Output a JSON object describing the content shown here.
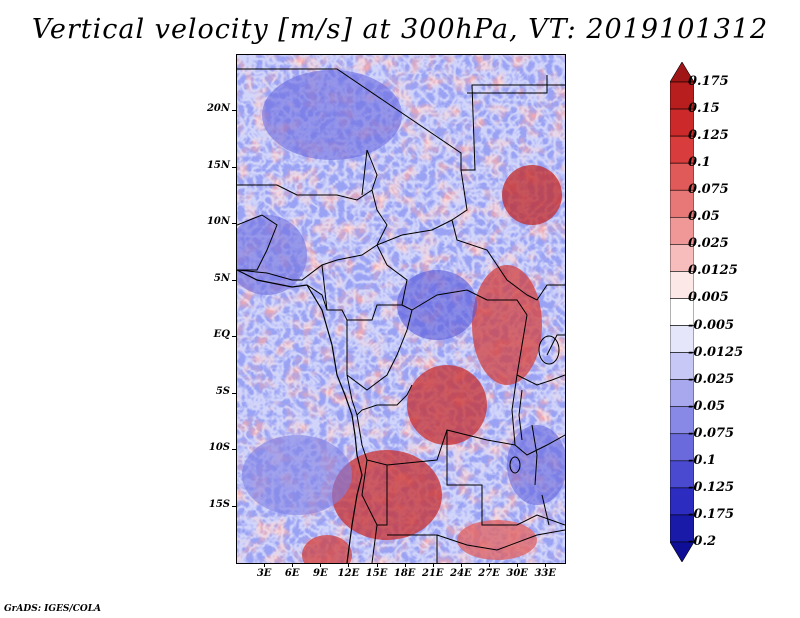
{
  "title": "Vertical velocity [m/s] at 300hPa, VT: 2019101312",
  "credit": "GrADS: IGES/COLA",
  "map": {
    "lat_range": [
      -20,
      25
    ],
    "lon_range": [
      0,
      35
    ],
    "lat_ticks": [
      {
        "label": "20N",
        "lat": 20
      },
      {
        "label": "15N",
        "lat": 15
      },
      {
        "label": "10N",
        "lat": 10
      },
      {
        "label": "5N",
        "lat": 5
      },
      {
        "label": "EQ",
        "lat": 0
      },
      {
        "label": "5S",
        "lat": -5
      },
      {
        "label": "10S",
        "lat": -10
      },
      {
        "label": "15S",
        "lat": -15
      }
    ],
    "lon_ticks": [
      {
        "label": "3E",
        "lon": 3
      },
      {
        "label": "6E",
        "lon": 6
      },
      {
        "label": "9E",
        "lon": 9
      },
      {
        "label": "12E",
        "lon": 12
      },
      {
        "label": "15E",
        "lon": 15
      },
      {
        "label": "18E",
        "lon": 18
      },
      {
        "label": "21E",
        "lon": 21
      },
      {
        "label": "24E",
        "lon": 24
      },
      {
        "label": "27E",
        "lon": 27
      },
      {
        "label": "30E",
        "lon": 30
      },
      {
        "label": "33E",
        "lon": 33
      }
    ]
  },
  "colorbar": {
    "levels": [
      "0.175",
      "0.15",
      "0.125",
      "0.1",
      "0.075",
      "0.05",
      "0.025",
      "0.0125",
      "0.005",
      "-0.005",
      "-0.0125",
      "-0.025",
      "-0.05",
      "-0.075",
      "-0.1",
      "-0.125",
      "-0.175",
      "-0.2"
    ],
    "colors": [
      "#a01515",
      "#b81e1e",
      "#cc2a2a",
      "#d83c3c",
      "#e05a5a",
      "#e87878",
      "#f09898",
      "#f7bcbc",
      "#fde8e8",
      "#ffffff",
      "#e6e6fb",
      "#c8c8f6",
      "#a8a8ef",
      "#8888e6",
      "#6a6add",
      "#4a4ad0",
      "#2c2cc0",
      "#1a1aa8",
      "#0e0e96"
    ]
  }
}
